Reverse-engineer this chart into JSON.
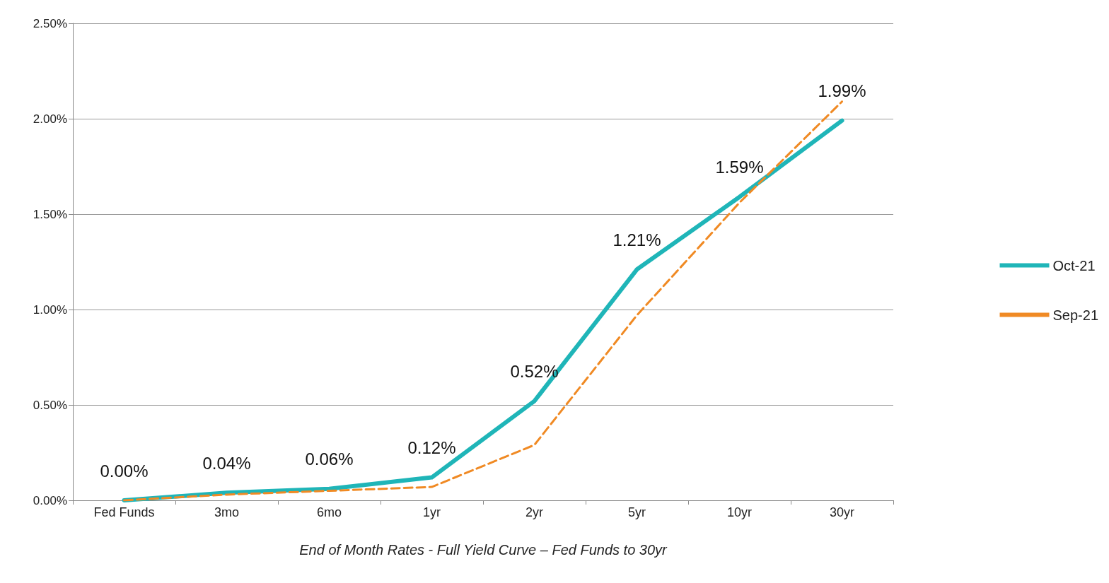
{
  "chart_data": {
    "type": "line",
    "xlabel": "End of Month Rates - Full Yield Curve – Fed Funds to 30yr",
    "categories": [
      "Fed Funds",
      "3mo",
      "6mo",
      "1yr",
      "2yr",
      "5yr",
      "10yr",
      "30yr"
    ],
    "series": [
      {
        "name": "Oct-21",
        "color": "#1fb5b8",
        "line_style": "solid",
        "values": [
          0.0,
          0.04,
          0.06,
          0.12,
          0.52,
          1.21,
          1.59,
          1.99
        ],
        "value_labels": [
          "0.00%",
          "0.04%",
          "0.06%",
          "0.12%",
          "0.52%",
          "1.21%",
          "1.59%",
          "1.99%"
        ]
      },
      {
        "name": "Sep-21",
        "color": "#f08a24",
        "line_style": "dashed",
        "values": [
          0.0,
          0.03,
          0.05,
          0.07,
          0.29,
          0.97,
          1.56,
          2.09
        ]
      }
    ],
    "ylim": [
      0,
      2.5
    ],
    "yticks": [
      {
        "value": 0,
        "label": "0.00%"
      },
      {
        "value": 0.5,
        "label": "0.50%"
      },
      {
        "value": 1,
        "label": "1.00%"
      },
      {
        "value": 1.5,
        "label": "1.50%"
      },
      {
        "value": 2,
        "label": "2.00%"
      },
      {
        "value": 2.5,
        "label": "2.50%"
      }
    ],
    "grid": "y",
    "legend": "right",
    "marker": "none"
  }
}
